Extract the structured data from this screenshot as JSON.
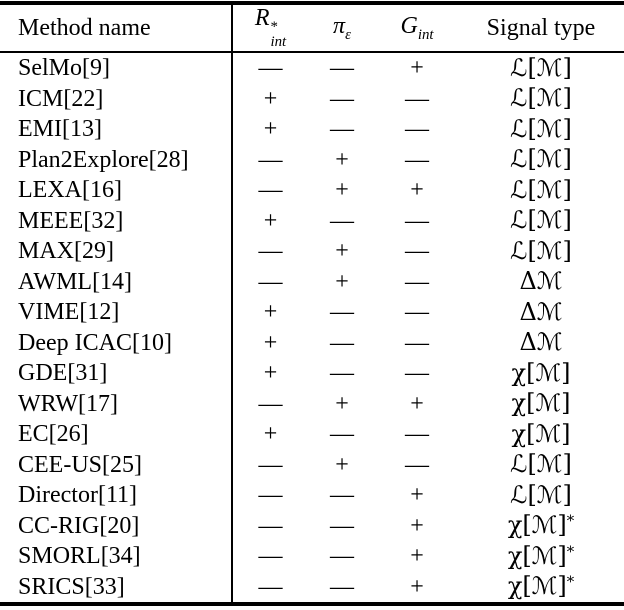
{
  "table": {
    "headers": {
      "method": "Method name",
      "r": {
        "base": "R",
        "sup": "*",
        "sub": "int"
      },
      "pi": {
        "base": "π",
        "sub": "ε"
      },
      "g": {
        "base": "G",
        "sub": "int"
      },
      "signal": "Signal type"
    },
    "rows": [
      {
        "method": "SelMo[9]",
        "r": "—",
        "pi": "—",
        "g": "+",
        "signal": {
          "text": "ℒ[ℳ]",
          "sup": ""
        }
      },
      {
        "method": "ICM[22]",
        "r": "+",
        "pi": "—",
        "g": "—",
        "signal": {
          "text": "ℒ[ℳ]",
          "sup": ""
        }
      },
      {
        "method": "EMI[13]",
        "r": "+",
        "pi": "—",
        "g": "—",
        "signal": {
          "text": "ℒ[ℳ]",
          "sup": ""
        }
      },
      {
        "method": "Plan2Explore[28]",
        "r": "—",
        "pi": "+",
        "g": "—",
        "signal": {
          "text": "ℒ[ℳ]",
          "sup": ""
        }
      },
      {
        "method": "LEXA[16]",
        "r": "—",
        "pi": "+",
        "g": "+",
        "signal": {
          "text": "ℒ[ℳ]",
          "sup": ""
        }
      },
      {
        "method": "MEEE[32]",
        "r": "+",
        "pi": "—",
        "g": "—",
        "signal": {
          "text": "ℒ[ℳ]",
          "sup": ""
        }
      },
      {
        "method": "MAX[29]",
        "r": "—",
        "pi": "+",
        "g": "—",
        "signal": {
          "text": "ℒ[ℳ]",
          "sup": ""
        }
      },
      {
        "method": "AWML[14]",
        "r": "—",
        "pi": "+",
        "g": "—",
        "signal": {
          "text": "Δℳ",
          "sup": ""
        }
      },
      {
        "method": "VIME[12]",
        "r": "+",
        "pi": "—",
        "g": "—",
        "signal": {
          "text": "Δℳ",
          "sup": ""
        }
      },
      {
        "method": "Deep ICAC[10]",
        "r": "+",
        "pi": "—",
        "g": "—",
        "signal": {
          "text": "Δℳ",
          "sup": ""
        }
      },
      {
        "method": "GDE[31]",
        "r": "+",
        "pi": "—",
        "g": "—",
        "signal": {
          "text": "χ[ℳ]",
          "sup": ""
        }
      },
      {
        "method": "WRW[17]",
        "r": "—",
        "pi": "+",
        "g": "+",
        "signal": {
          "text": "χ[ℳ]",
          "sup": ""
        }
      },
      {
        "method": "EC[26]",
        "r": "+",
        "pi": "—",
        "g": "—",
        "signal": {
          "text": "χ[ℳ]",
          "sup": ""
        }
      },
      {
        "method": "CEE-US[25]",
        "r": "—",
        "pi": "+",
        "g": "—",
        "signal": {
          "text": "ℒ[ℳ]",
          "sup": ""
        }
      },
      {
        "method": "Director[11]",
        "r": "—",
        "pi": "—",
        "g": "+",
        "signal": {
          "text": "ℒ[ℳ]",
          "sup": ""
        }
      },
      {
        "method": "CC-RIG[20]",
        "r": "—",
        "pi": "—",
        "g": "+",
        "signal": {
          "text": "χ[ℳ]",
          "sup": "*"
        }
      },
      {
        "method": "SMORL[34]",
        "r": "—",
        "pi": "—",
        "g": "+",
        "signal": {
          "text": "χ[ℳ]",
          "sup": "*"
        }
      },
      {
        "method": "SRICS[33]",
        "r": "—",
        "pi": "—",
        "g": "+",
        "signal": {
          "text": "χ[ℳ]",
          "sup": "*"
        }
      }
    ]
  }
}
